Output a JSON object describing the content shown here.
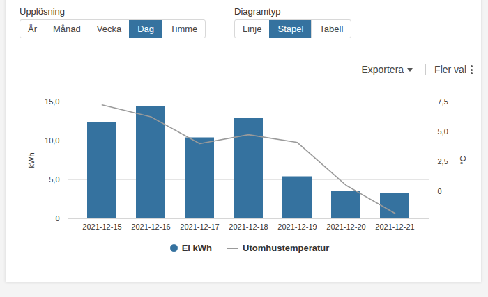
{
  "controls": {
    "resolution": {
      "label": "Upplösning",
      "options": [
        "År",
        "Månad",
        "Vecka",
        "Dag",
        "Timme"
      ],
      "selected": "Dag"
    },
    "chart_type": {
      "label": "Diagramtyp",
      "options": [
        "Linje",
        "Stapel",
        "Tabell"
      ],
      "selected": "Stapel"
    },
    "actions": [
      "Exportera",
      "Fler val"
    ]
  },
  "chart_data": {
    "type": "bar",
    "categories": [
      "2021-12-15",
      "2021-12-16",
      "2021-12-17",
      "2021-12-18",
      "2021-12-19",
      "2021-12-20",
      "2021-12-21"
    ],
    "series": [
      {
        "name": "El kWh",
        "type": "bar",
        "color": "#35729f",
        "values": [
          12.4,
          14.4,
          10.4,
          12.9,
          5.4,
          3.5,
          3.3
        ]
      },
      {
        "name": "Utomhustemperatur",
        "type": "line",
        "color": "#9a9a9a",
        "axis": "y2",
        "values": [
          7.25,
          6.25,
          4.0,
          4.75,
          4.1,
          0.5,
          -1.85
        ]
      }
    ],
    "y_label": "kWh",
    "y2_label": "°C",
    "ylim": [
      0,
      15
    ],
    "yticks": [
      0,
      {
        "value": 5,
        "label": "5,0"
      },
      {
        "value": 10,
        "label": "10,0"
      },
      {
        "value": 15,
        "label": "15,0"
      }
    ],
    "y2lim": [
      -2.3,
      7.5
    ],
    "y2ticks": [
      0,
      {
        "value": 2.5,
        "label": "2,5"
      },
      {
        "value": 5,
        "label": "5,0"
      },
      {
        "value": 7.5,
        "label": "7,5"
      }
    ],
    "grid": true,
    "legend": "bottom"
  }
}
